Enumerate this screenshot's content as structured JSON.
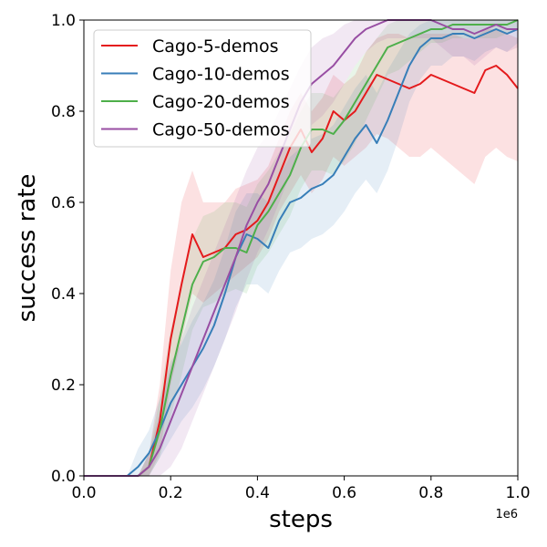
{
  "chart_data": {
    "type": "line",
    "title": "",
    "xlabel": "steps",
    "ylabel": "success rate",
    "x_offset_label": "1e6",
    "xlim": [
      0.0,
      1.0
    ],
    "ylim": [
      0.0,
      1.0
    ],
    "xticks": [
      "0.0",
      "0.2",
      "0.4",
      "0.6",
      "0.8",
      "1.0"
    ],
    "yticks": [
      "0.0",
      "0.2",
      "0.4",
      "0.6",
      "0.8",
      "1.0"
    ],
    "grid": false,
    "legend_position": "upper-left",
    "x": [
      0.0,
      0.05,
      0.1,
      0.125,
      0.15,
      0.175,
      0.2,
      0.225,
      0.25,
      0.275,
      0.3,
      0.325,
      0.35,
      0.375,
      0.4,
      0.425,
      0.45,
      0.475,
      0.5,
      0.525,
      0.55,
      0.575,
      0.6,
      0.625,
      0.65,
      0.675,
      0.7,
      0.725,
      0.75,
      0.775,
      0.8,
      0.825,
      0.85,
      0.875,
      0.9,
      0.925,
      0.95,
      0.975,
      1.0
    ],
    "series": [
      {
        "name": "Cago-5-demos",
        "color": "#e41a1c",
        "values": [
          0.0,
          0.0,
          0.0,
          0.0,
          0.02,
          0.12,
          0.3,
          0.42,
          0.53,
          0.48,
          0.49,
          0.5,
          0.53,
          0.54,
          0.56,
          0.6,
          0.66,
          0.72,
          0.76,
          0.71,
          0.74,
          0.8,
          0.78,
          0.8,
          0.84,
          0.88,
          0.87,
          0.86,
          0.85,
          0.86,
          0.88,
          0.87,
          0.86,
          0.85,
          0.84,
          0.89,
          0.9,
          0.88,
          0.85
        ],
        "lower": [
          0.0,
          0.0,
          0.0,
          0.0,
          0.0,
          0.05,
          0.2,
          0.3,
          0.4,
          0.38,
          0.4,
          0.42,
          0.44,
          0.46,
          0.48,
          0.52,
          0.58,
          0.62,
          0.66,
          0.62,
          0.65,
          0.7,
          0.68,
          0.7,
          0.72,
          0.75,
          0.74,
          0.72,
          0.7,
          0.7,
          0.72,
          0.7,
          0.68,
          0.66,
          0.64,
          0.7,
          0.72,
          0.7,
          0.69
        ],
        "upper": [
          0.0,
          0.0,
          0.0,
          0.0,
          0.05,
          0.2,
          0.45,
          0.6,
          0.67,
          0.6,
          0.6,
          0.6,
          0.63,
          0.64,
          0.65,
          0.68,
          0.74,
          0.8,
          0.84,
          0.8,
          0.83,
          0.88,
          0.86,
          0.88,
          0.93,
          0.96,
          0.97,
          0.97,
          0.96,
          0.97,
          0.97,
          0.97,
          0.97,
          0.96,
          0.96,
          0.98,
          0.98,
          0.97,
          0.96
        ]
      },
      {
        "name": "Cago-10-demos",
        "color": "#377eb8",
        "values": [
          0.0,
          0.0,
          0.0,
          0.02,
          0.05,
          0.1,
          0.16,
          0.2,
          0.24,
          0.28,
          0.33,
          0.4,
          0.48,
          0.53,
          0.52,
          0.5,
          0.56,
          0.6,
          0.61,
          0.63,
          0.64,
          0.66,
          0.7,
          0.74,
          0.77,
          0.73,
          0.78,
          0.84,
          0.9,
          0.94,
          0.96,
          0.96,
          0.97,
          0.97,
          0.96,
          0.97,
          0.98,
          0.97,
          0.98
        ],
        "lower": [
          0.0,
          0.0,
          0.0,
          0.0,
          0.0,
          0.04,
          0.08,
          0.12,
          0.15,
          0.19,
          0.24,
          0.3,
          0.37,
          0.42,
          0.42,
          0.4,
          0.45,
          0.49,
          0.5,
          0.52,
          0.53,
          0.55,
          0.58,
          0.62,
          0.65,
          0.62,
          0.67,
          0.74,
          0.82,
          0.87,
          0.9,
          0.9,
          0.92,
          0.92,
          0.91,
          0.93,
          0.94,
          0.93,
          0.95
        ],
        "upper": [
          0.0,
          0.0,
          0.0,
          0.06,
          0.1,
          0.17,
          0.25,
          0.29,
          0.34,
          0.38,
          0.43,
          0.5,
          0.58,
          0.62,
          0.62,
          0.6,
          0.66,
          0.7,
          0.72,
          0.74,
          0.75,
          0.77,
          0.81,
          0.85,
          0.88,
          0.84,
          0.89,
          0.93,
          0.97,
          0.99,
          1.0,
          1.0,
          1.0,
          1.0,
          1.0,
          1.0,
          1.0,
          1.0,
          1.0
        ]
      },
      {
        "name": "Cago-20-demos",
        "color": "#4daf4a",
        "values": [
          0.0,
          0.0,
          0.0,
          0.0,
          0.02,
          0.1,
          0.22,
          0.32,
          0.42,
          0.47,
          0.48,
          0.5,
          0.5,
          0.49,
          0.55,
          0.58,
          0.62,
          0.66,
          0.72,
          0.76,
          0.76,
          0.75,
          0.78,
          0.82,
          0.86,
          0.9,
          0.94,
          0.95,
          0.96,
          0.97,
          0.98,
          0.98,
          0.99,
          0.99,
          0.99,
          0.99,
          0.99,
          0.99,
          1.0
        ],
        "lower": [
          0.0,
          0.0,
          0.0,
          0.0,
          0.0,
          0.04,
          0.13,
          0.22,
          0.32,
          0.37,
          0.38,
          0.4,
          0.41,
          0.4,
          0.46,
          0.49,
          0.53,
          0.57,
          0.63,
          0.67,
          0.67,
          0.66,
          0.69,
          0.73,
          0.78,
          0.83,
          0.88,
          0.89,
          0.91,
          0.93,
          0.95,
          0.95,
          0.96,
          0.96,
          0.96,
          0.96,
          0.96,
          0.97,
          0.98
        ],
        "upper": [
          0.0,
          0.0,
          0.0,
          0.0,
          0.05,
          0.17,
          0.32,
          0.42,
          0.52,
          0.57,
          0.58,
          0.6,
          0.6,
          0.59,
          0.64,
          0.67,
          0.71,
          0.75,
          0.8,
          0.84,
          0.84,
          0.83,
          0.86,
          0.9,
          0.93,
          0.96,
          0.99,
          1.0,
          1.0,
          1.0,
          1.0,
          1.0,
          1.0,
          1.0,
          1.0,
          1.0,
          1.0,
          1.0,
          1.0
        ]
      },
      {
        "name": "Cago-50-demos",
        "color": "#984ea3",
        "values": [
          0.0,
          0.0,
          0.0,
          0.0,
          0.02,
          0.06,
          0.12,
          0.18,
          0.24,
          0.3,
          0.36,
          0.42,
          0.48,
          0.55,
          0.6,
          0.64,
          0.7,
          0.76,
          0.82,
          0.86,
          0.88,
          0.9,
          0.93,
          0.96,
          0.98,
          0.99,
          1.0,
          1.0,
          1.0,
          1.0,
          1.0,
          0.99,
          0.98,
          0.98,
          0.97,
          0.98,
          0.99,
          0.98,
          0.98
        ],
        "lower": [
          0.0,
          0.0,
          0.0,
          0.0,
          0.0,
          0.0,
          0.02,
          0.06,
          0.12,
          0.18,
          0.24,
          0.3,
          0.36,
          0.43,
          0.49,
          0.54,
          0.6,
          0.66,
          0.72,
          0.77,
          0.79,
          0.82,
          0.86,
          0.9,
          0.93,
          0.95,
          0.96,
          0.96,
          0.96,
          0.96,
          0.96,
          0.94,
          0.92,
          0.92,
          0.9,
          0.92,
          0.94,
          0.93,
          0.94
        ],
        "upper": [
          0.0,
          0.0,
          0.0,
          0.0,
          0.05,
          0.14,
          0.24,
          0.3,
          0.37,
          0.43,
          0.49,
          0.55,
          0.61,
          0.67,
          0.72,
          0.75,
          0.8,
          0.85,
          0.9,
          0.94,
          0.96,
          0.97,
          0.99,
          1.0,
          1.0,
          1.0,
          1.0,
          1.0,
          1.0,
          1.0,
          1.0,
          1.0,
          1.0,
          1.0,
          1.0,
          1.0,
          1.0,
          1.0,
          1.0
        ]
      }
    ]
  }
}
